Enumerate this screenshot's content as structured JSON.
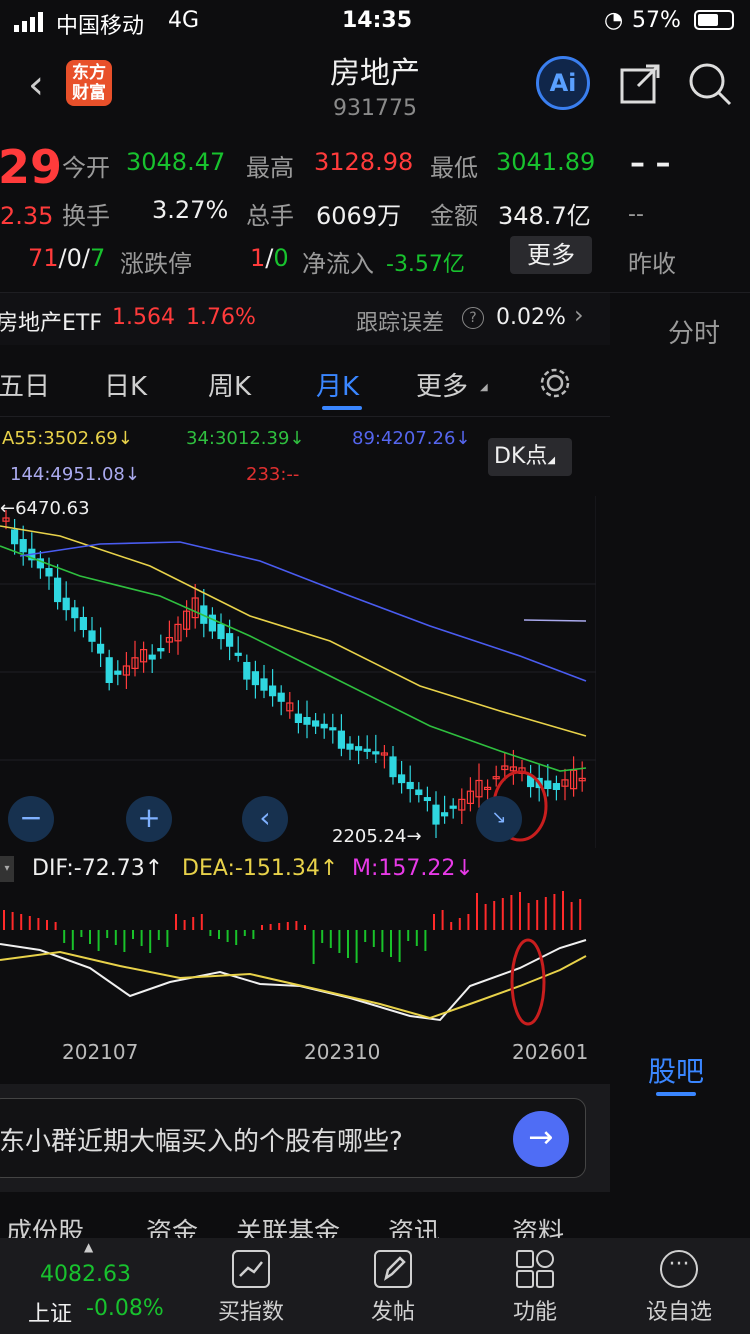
{
  "status_bar": {
    "carrier": "中国移动",
    "network": "4G",
    "time": "14:35",
    "battery": "57%"
  },
  "header": {
    "logo_text": "东方\n财富",
    "title": "房地产",
    "code": "931775",
    "ai_label": "Ai"
  },
  "quote": {
    "price_partial": "29",
    "change_partial": "2.35",
    "counts": [
      "71",
      "0",
      "7"
    ],
    "open_label": "今开",
    "open": "3048.47",
    "high_label": "最高",
    "high": "3128.98",
    "low_label": "最低",
    "low": "3041.89",
    "turnover_label": "换手",
    "turnover": "3.27%",
    "volume_label": "总手",
    "volume": "6069万",
    "amount_label": "金额",
    "amount": "348.7亿",
    "limit_label": "涨跌停",
    "limit_up": "1",
    "limit_down": "0",
    "netflow_label": "净流入",
    "netflow": "-3.57亿",
    "more_button": "更多",
    "right_dash1": "– –",
    "right_dash2": "--",
    "prev_close_label": "昨收"
  },
  "etf": {
    "name": "房地产ETF",
    "price": "1.564",
    "change": "1.76%",
    "tracking_label": "跟踪误差",
    "tracking_value": "0.02%"
  },
  "tabs": {
    "five_day": "五日",
    "day_k": "日K",
    "week_k": "周K",
    "month_k": "月K",
    "more": "更多",
    "side_tab": "分时"
  },
  "chart_data": {
    "type": "candlestick",
    "ma_legend": [
      {
        "label": "A55:3502.69",
        "arrow": "↓",
        "color": "#e8d24a"
      },
      {
        "label": "34:3012.39",
        "arrow": "↓",
        "color": "#2fbf3f"
      },
      {
        "label": "89:4207.26",
        "arrow": "↓",
        "color": "#5566ee"
      },
      {
        "label": "144:4951.08",
        "arrow": "↓",
        "color": "#aaaaee"
      },
      {
        "label": "233:--",
        "arrow": "",
        "color": "#e03030"
      }
    ],
    "dk_button": "DK点",
    "high_marker": "6470.63",
    "low_marker": "2205.24",
    "macd_legend": {
      "dif": "DIF:-72.73",
      "dif_arrow": "↑",
      "dea": "DEA:-151.34",
      "dea_arrow": "↑",
      "m": "M:157.22",
      "m_arrow": "↓"
    },
    "x_ticks": [
      "202107",
      "202310",
      "202601"
    ]
  },
  "side_panel": {
    "guba": "股吧"
  },
  "ask_bar": {
    "question": "东小群近期大幅买入的个股有哪些?"
  },
  "sub_tabs": [
    "成份股",
    "资金",
    "关联基金",
    "资讯",
    "资料"
  ],
  "bottom_bar": {
    "index_value": "4082.63",
    "index_name": "上证",
    "index_change": "-0.08%",
    "items": [
      "买指数",
      "发帖",
      "功能",
      "设自选"
    ]
  }
}
